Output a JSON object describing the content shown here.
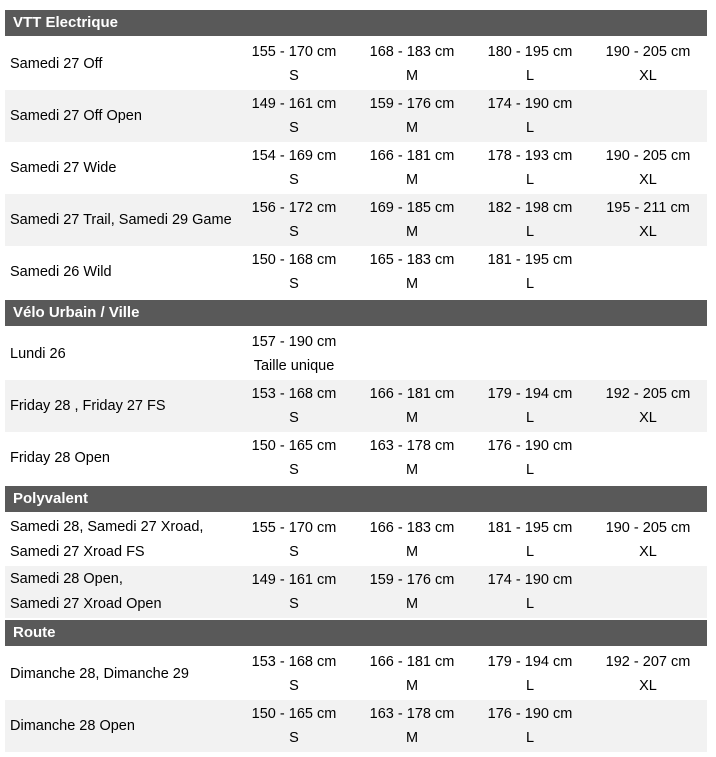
{
  "table": {
    "colors": {
      "section_header_bg": "#595959",
      "section_header_text": "#ffffff",
      "row_alt_bg": "#f2f2f2",
      "text": "#000000"
    },
    "sections": [
      {
        "title": "VTT Electrique",
        "rows": [
          {
            "model": [
              "Samedi 27 Off"
            ],
            "sizes": [
              {
                "range": "155 - 170 cm",
                "label": "S"
              },
              {
                "range": "168 - 183 cm",
                "label": "M"
              },
              {
                "range": "180 - 195 cm",
                "label": "L"
              },
              {
                "range": "190 - 205 cm",
                "label": "XL"
              }
            ]
          },
          {
            "model": [
              "Samedi 27 Off Open"
            ],
            "sizes": [
              {
                "range": "149 - 161 cm",
                "label": "S"
              },
              {
                "range": "159 - 176 cm",
                "label": "M"
              },
              {
                "range": "174 - 190 cm",
                "label": "L"
              }
            ]
          },
          {
            "model": [
              "Samedi 27 Wide"
            ],
            "sizes": [
              {
                "range": "154 - 169 cm",
                "label": "S"
              },
              {
                "range": "166 - 181 cm",
                "label": "M"
              },
              {
                "range": "178 - 193 cm",
                "label": "L"
              },
              {
                "range": "190 - 205 cm",
                "label": "XL"
              }
            ]
          },
          {
            "model": [
              "Samedi 27 Trail, Samedi 29 Game"
            ],
            "sizes": [
              {
                "range": "156 - 172 cm",
                "label": "S"
              },
              {
                "range": "169 - 185 cm",
                "label": "M"
              },
              {
                "range": "182 - 198 cm",
                "label": "L"
              },
              {
                "range": "195 - 211 cm",
                "label": "XL"
              }
            ]
          },
          {
            "model": [
              "Samedi 26 Wild"
            ],
            "sizes": [
              {
                "range": "150 - 168 cm",
                "label": "S"
              },
              {
                "range": "165 - 183 cm",
                "label": "M"
              },
              {
                "range": "181 - 195 cm",
                "label": "L"
              }
            ]
          }
        ]
      },
      {
        "title": "Vélo Urbain / Ville",
        "rows": [
          {
            "model": [
              "Lundi 26"
            ],
            "sizes": [
              {
                "range": "157 - 190 cm",
                "label": "Taille unique"
              }
            ]
          },
          {
            "model": [
              "Friday 28 , Friday 27 FS"
            ],
            "sizes": [
              {
                "range": "153 - 168 cm",
                "label": "S"
              },
              {
                "range": "166 - 181 cm",
                "label": "M"
              },
              {
                "range": "179 - 194 cm",
                "label": "L"
              },
              {
                "range": "192 - 205 cm",
                "label": "XL"
              }
            ]
          },
          {
            "model": [
              "Friday 28 Open"
            ],
            "sizes": [
              {
                "range": "150 - 165 cm",
                "label": "S"
              },
              {
                "range": "163 - 178 cm",
                "label": "M"
              },
              {
                "range": "176 - 190 cm",
                "label": "L"
              }
            ]
          }
        ]
      },
      {
        "title": "Polyvalent",
        "rows": [
          {
            "model": [
              "Samedi 28, Samedi 27 Xroad,",
              "Samedi 27 Xroad FS"
            ],
            "sizes": [
              {
                "range": "155 - 170 cm",
                "label": "S"
              },
              {
                "range": "166 - 183 cm",
                "label": "M"
              },
              {
                "range": "181 - 195 cm",
                "label": "L"
              },
              {
                "range": "190 - 205 cm",
                "label": "XL"
              }
            ]
          },
          {
            "model": [
              "Samedi 28 Open,",
              "Samedi 27 Xroad Open"
            ],
            "sizes": [
              {
                "range": "149 - 161 cm",
                "label": "S"
              },
              {
                "range": "159 - 176 cm",
                "label": "M"
              },
              {
                "range": "174 - 190 cm",
                "label": "L"
              }
            ]
          }
        ]
      },
      {
        "title": "Route",
        "rows": [
          {
            "model": [
              "Dimanche 28, Dimanche 29"
            ],
            "sizes": [
              {
                "range": "153 - 168 cm",
                "label": "S"
              },
              {
                "range": "166 - 181 cm",
                "label": "M"
              },
              {
                "range": "179 - 194 cm",
                "label": "L"
              },
              {
                "range": "192 - 207 cm",
                "label": "XL"
              }
            ]
          },
          {
            "model": [
              "Dimanche 28 Open"
            ],
            "sizes": [
              {
                "range": "150 - 165 cm",
                "label": "S"
              },
              {
                "range": "163 - 178 cm",
                "label": "M"
              },
              {
                "range": "176 - 190 cm",
                "label": "L"
              }
            ]
          }
        ]
      }
    ]
  }
}
